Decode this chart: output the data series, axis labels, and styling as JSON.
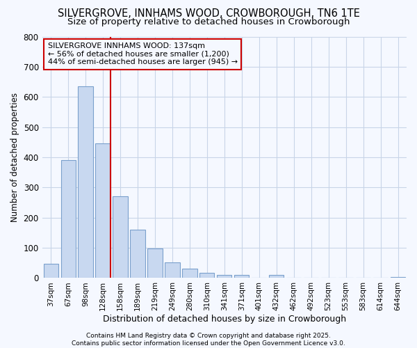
{
  "title": "SILVERGROVE, INNHAMS WOOD, CROWBOROUGH, TN6 1TE",
  "subtitle": "Size of property relative to detached houses in Crowborough",
  "xlabel": "Distribution of detached houses by size in Crowborough",
  "ylabel": "Number of detached properties",
  "categories": [
    "37sqm",
    "67sqm",
    "98sqm",
    "128sqm",
    "158sqm",
    "189sqm",
    "219sqm",
    "249sqm",
    "280sqm",
    "310sqm",
    "341sqm",
    "371sqm",
    "401sqm",
    "432sqm",
    "462sqm",
    "492sqm",
    "523sqm",
    "553sqm",
    "583sqm",
    "614sqm",
    "644sqm"
  ],
  "values": [
    47,
    390,
    635,
    445,
    270,
    160,
    97,
    52,
    30,
    17,
    10,
    10,
    0,
    10,
    0,
    0,
    0,
    0,
    0,
    0,
    3
  ],
  "bar_color": "#c8d8f0",
  "bar_edgecolor": "#7aa0cc",
  "vline_x_idx": 3,
  "vline_color": "#cc0000",
  "annotation_text": "SILVERGROVE INNHAMS WOOD: 137sqm\n← 56% of detached houses are smaller (1,200)\n44% of semi-detached houses are larger (945) →",
  "ylim": [
    0,
    800
  ],
  "yticks": [
    0,
    100,
    200,
    300,
    400,
    500,
    600,
    700,
    800
  ],
  "footer": "Contains HM Land Registry data © Crown copyright and database right 2025.\nContains public sector information licensed under the Open Government Licence v3.0.",
  "title_fontsize": 10.5,
  "subtitle_fontsize": 9.5,
  "background_color": "#f5f8ff",
  "grid_color": "#c8d4e8"
}
